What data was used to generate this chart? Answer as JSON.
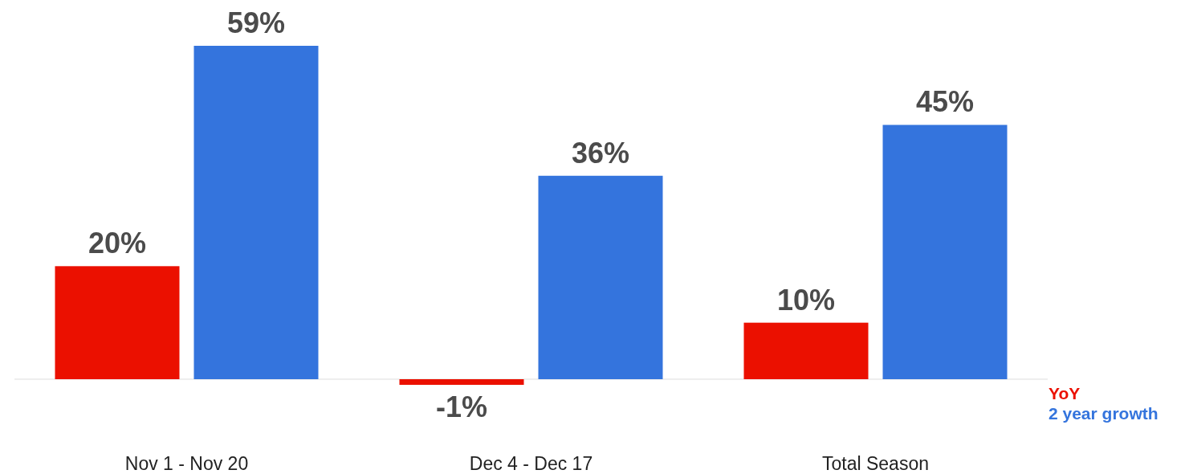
{
  "chart_data": {
    "type": "bar",
    "categories": [
      "Nov 1 - Nov 20",
      "Dec 4 - Dec 17",
      "Total Season"
    ],
    "series": [
      {
        "name": "YoY",
        "color": "#eb1000",
        "values": [
          20,
          -1,
          10
        ],
        "value_labels": [
          "20%",
          "-1%",
          "10%"
        ]
      },
      {
        "name": "2 year growth",
        "color": "#3474dd",
        "values": [
          59,
          36,
          45
        ],
        "value_labels": [
          "59%",
          "36%",
          "45%"
        ]
      }
    ],
    "legend": "bottom right"
  }
}
